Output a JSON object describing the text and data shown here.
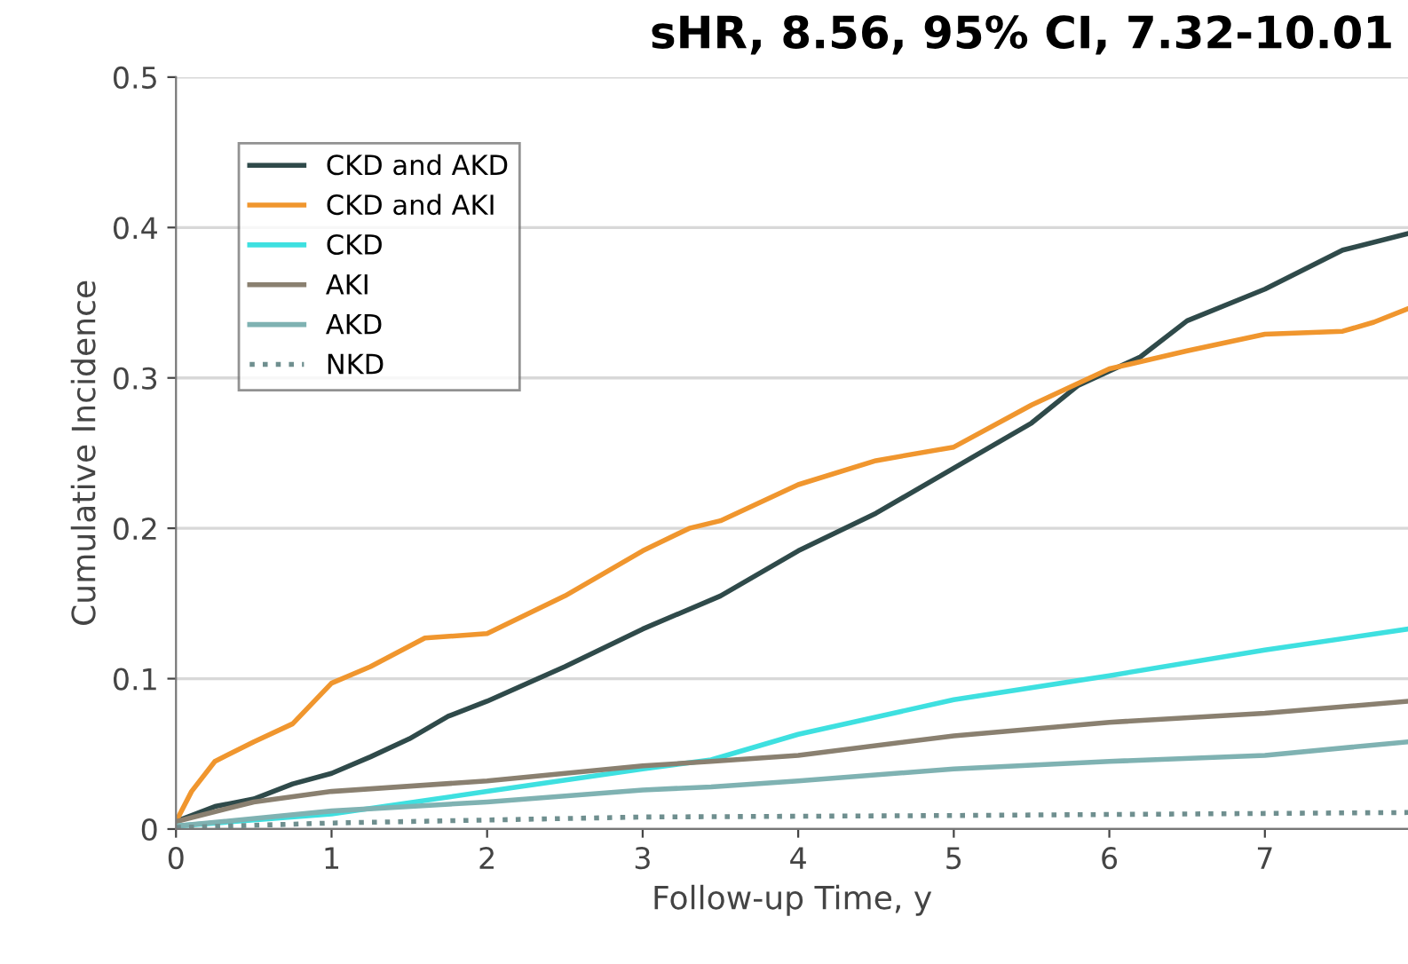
{
  "chart_data": {
    "type": "line",
    "title": "sHR, 8.56, 95% CI, 7.32-10.01",
    "xlabel": "Follow-up Time, y",
    "ylabel": "Cumulative Incidence",
    "xlim": [
      0,
      7.92
    ],
    "xticks": [
      0,
      1,
      2,
      3,
      4,
      5,
      6,
      7
    ],
    "ylim": [
      0,
      0.5
    ],
    "yticks": [
      0,
      0.1,
      0.2,
      0.3,
      0.4,
      0.5
    ],
    "grid": "y",
    "legend": "top left",
    "marker": "none",
    "series": [
      {
        "name": "CKD and AKD",
        "color": "#2f4a4a",
        "line_style": "solid",
        "x": [
          0,
          0.25,
          0.5,
          0.75,
          1,
          1.25,
          1.5,
          1.75,
          2,
          2.5,
          3,
          3.5,
          4,
          4.5,
          5,
          5.5,
          5.8,
          6.2,
          6.5,
          7,
          7.5,
          7.92
        ],
        "values": [
          0.005,
          0.015,
          0.02,
          0.03,
          0.037,
          0.048,
          0.06,
          0.075,
          0.085,
          0.108,
          0.133,
          0.155,
          0.185,
          0.21,
          0.24,
          0.27,
          0.295,
          0.314,
          0.338,
          0.359,
          0.385,
          0.396
        ]
      },
      {
        "name": "CKD and AKI",
        "color": "#f0962e",
        "line_style": "solid",
        "x": [
          0,
          0.1,
          0.25,
          0.5,
          0.75,
          1,
          1.25,
          1.6,
          2,
          2.5,
          3,
          3.3,
          3.5,
          4,
          4.5,
          5,
          5.5,
          6,
          6.5,
          7,
          7.5,
          7.7,
          7.92
        ],
        "values": [
          0.005,
          0.025,
          0.045,
          0.058,
          0.07,
          0.097,
          0.108,
          0.127,
          0.13,
          0.155,
          0.185,
          0.2,
          0.205,
          0.229,
          0.245,
          0.254,
          0.282,
          0.306,
          0.318,
          0.329,
          0.331,
          0.337,
          0.346
        ]
      },
      {
        "name": "CKD",
        "color": "#3ee0e0",
        "line_style": "solid",
        "x": [
          0,
          1,
          2,
          3,
          3.44,
          4,
          5,
          6,
          7,
          7.92
        ],
        "values": [
          0.002,
          0.01,
          0.025,
          0.04,
          0.046,
          0.063,
          0.086,
          0.102,
          0.119,
          0.133
        ]
      },
      {
        "name": "AKI",
        "color": "#8a8070",
        "line_style": "solid",
        "x": [
          0,
          0.5,
          1,
          2,
          3,
          3.44,
          4,
          5,
          6,
          7,
          7.92
        ],
        "values": [
          0.005,
          0.018,
          0.025,
          0.032,
          0.042,
          0.045,
          0.049,
          0.062,
          0.071,
          0.077,
          0.085
        ]
      },
      {
        "name": "AKD",
        "color": "#7fb2b2",
        "line_style": "solid",
        "x": [
          0,
          1,
          2,
          3,
          3.44,
          4,
          5,
          6,
          7,
          7.92
        ],
        "values": [
          0.002,
          0.012,
          0.018,
          0.026,
          0.028,
          0.032,
          0.04,
          0.045,
          0.049,
          0.058
        ]
      },
      {
        "name": "NKD",
        "color": "#6f8f8f",
        "line_style": "dotted",
        "x": [
          0,
          1,
          3,
          5,
          7.92
        ],
        "values": [
          0.001,
          0.004,
          0.008,
          0.009,
          0.011
        ]
      }
    ]
  }
}
